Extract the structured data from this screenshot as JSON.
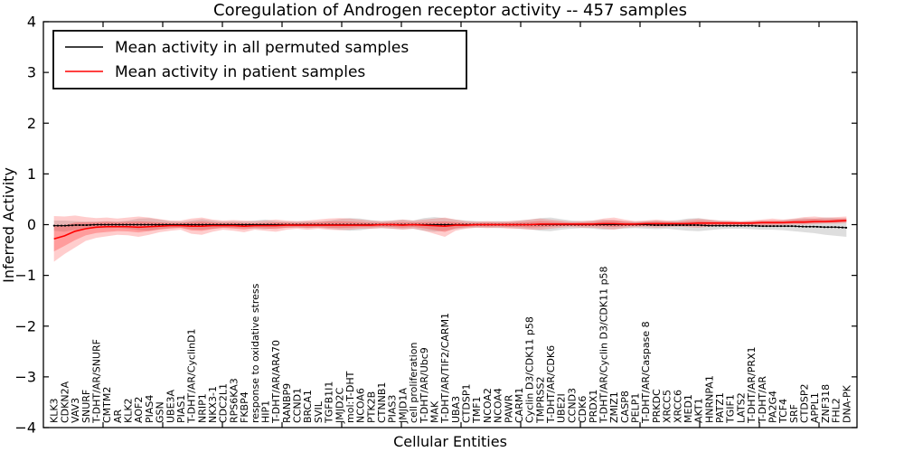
{
  "figure": {
    "title": "Coregulation of Androgen receptor activity -- 457 samples",
    "xlabel": "Cellular Entities",
    "ylabel": "Inferred Activity"
  },
  "legend": {
    "items": [
      {
        "label": "Mean activity in all permuted samples",
        "color": "#000000"
      },
      {
        "label": "Mean activity in patient samples",
        "color": "#ff0000"
      }
    ]
  },
  "colors": {
    "background": "#ffffff",
    "axis": "#000000",
    "permuted_line": "#000000",
    "patient_line": "#ff0000",
    "permuted_band": "rgba(0,0,0,0.13)",
    "patient_band": "rgba(255,45,45,0.24)",
    "patient_band_inner": "rgba(255,30,30,0.28)"
  },
  "chart_data": {
    "type": "line",
    "title": "Coregulation of Androgen receptor activity -- 457 samples",
    "xlabel": "Cellular Entities",
    "ylabel": "Inferred Activity",
    "ylim": [
      -4,
      4
    ],
    "yticks": [
      -4,
      -3,
      -2,
      -1,
      0,
      1,
      2,
      3,
      4
    ],
    "grid": false,
    "legend_position": "upper left",
    "categories": [
      "KLK3",
      "CDKN2A",
      "VAV3",
      "SNURF",
      "T-DHT/AR/SNURF",
      "CMTM2",
      "AR",
      "KLK2",
      "AOF2",
      "PIAS4",
      "GSN",
      "UBE3A",
      "PIAS1",
      "T-DHT/AR/CyclinD1",
      "NRIP1",
      "NKX3-1",
      "CDC2L1",
      "RPS6KA3",
      "FKBP4",
      "response to oxidative stress",
      "HIP1",
      "T-DHT/AR/ARA70",
      "RANBP9",
      "CCND1",
      "BRCA1",
      "SVIL",
      "TGFB1I1",
      "JMJD2C",
      "mol:T-DHT",
      "NCOA6",
      "PTK2B",
      "CTNNB1",
      "PIAS3",
      "JMJD1A",
      "cell proliferation",
      "T-DHT/AR/Ubc9",
      "MAK",
      "T-DHT/AR/TIF2/CARM1",
      "UBA3",
      "CTDSP1",
      "TMF1",
      "NCOA2",
      "NCOA4",
      "PAWR",
      "CARM1",
      "Cyclin D3/CDK11 p58",
      "TMPRSS2",
      "T-DHT/AR/CDK6",
      "UBE2I",
      "CCND3",
      "CDK6",
      "PRDX1",
      "T-DHT/AR/Cyclin D3/CDK11 p58",
      "ZMIZ1",
      "CASP8",
      "PELP1",
      "T-DHT/AR/Caspase 8",
      "PRKDC",
      "XRCC5",
      "XRCC6",
      "MED1",
      "AKT1",
      "HNRNPA1",
      "PATZ1",
      "TGIF1",
      "LATS2",
      "T-DHT/AR/PRX1",
      "T-DHT/AR",
      "PA2G4",
      "TCF4",
      "SRF",
      "CTDSP2",
      "APPL1",
      "ZNF318",
      "FHL2",
      "DNA-PK"
    ],
    "series": [
      {
        "name": "Mean activity in all permuted samples",
        "color": "#000000",
        "values": [
          -0.02,
          -0.02,
          -0.01,
          -0.01,
          0,
          0,
          0,
          0,
          0,
          0,
          0,
          0,
          0,
          0,
          0,
          0,
          0,
          0,
          0,
          0,
          0,
          0,
          0,
          0,
          0,
          0,
          0,
          0,
          0,
          0,
          0,
          0,
          0,
          0,
          0,
          0,
          0,
          0,
          0,
          0,
          0,
          0,
          0,
          0,
          0,
          0,
          0,
          0,
          0,
          0,
          0,
          0,
          0,
          0,
          0,
          0,
          0,
          -0.01,
          -0.01,
          -0.01,
          -0.01,
          -0.01,
          -0.02,
          -0.02,
          -0.02,
          -0.02,
          -0.02,
          -0.03,
          -0.03,
          -0.03,
          -0.03,
          -0.04,
          -0.04,
          -0.05,
          -0.05,
          -0.06
        ]
      },
      {
        "name": "Mean activity in patient samples",
        "color": "#ff0000",
        "values": [
          -0.28,
          -0.22,
          -0.13,
          -0.08,
          -0.05,
          -0.04,
          -0.04,
          -0.04,
          -0.05,
          -0.04,
          -0.03,
          -0.02,
          -0.02,
          -0.03,
          -0.03,
          -0.02,
          -0.02,
          -0.02,
          -0.03,
          -0.02,
          -0.02,
          -0.02,
          -0.01,
          -0.01,
          -0.01,
          -0.01,
          -0.01,
          -0.01,
          -0.01,
          -0.01,
          -0.01,
          0,
          0,
          -0.01,
          0,
          -0.01,
          -0.02,
          -0.03,
          -0.01,
          -0.01,
          0,
          0,
          0,
          0,
          0,
          0,
          0.01,
          0.01,
          0.01,
          0.01,
          0.01,
          0.01,
          0.02,
          0.02,
          0.01,
          0.01,
          0.02,
          0.02,
          0.02,
          0.02,
          0.02,
          0.03,
          0.03,
          0.03,
          0.03,
          0.03,
          0.03,
          0.04,
          0.04,
          0.04,
          0.05,
          0.05,
          0.06,
          0.06,
          0.07,
          0.08
        ]
      }
    ],
    "bands": [
      {
        "name": "permuted samples range",
        "color": "rgba(0,0,0,0.13)",
        "upper": [
          0.08,
          0.08,
          0.07,
          0.06,
          0.06,
          0.07,
          0.06,
          0.08,
          0.12,
          0.13,
          0.1,
          0.07,
          0.06,
          0.08,
          0.11,
          0.08,
          0.06,
          0.07,
          0.06,
          0.08,
          0.1,
          0.07,
          0.06,
          0.06,
          0.07,
          0.06,
          0.08,
          0.11,
          0.13,
          0.12,
          0.09,
          0.07,
          0.08,
          0.1,
          0.08,
          0.13,
          0.15,
          0.13,
          0.1,
          0.08,
          0.07,
          0.06,
          0.07,
          0.06,
          0.08,
          0.1,
          0.13,
          0.14,
          0.11,
          0.08,
          0.07,
          0.08,
          0.1,
          0.09,
          0.07,
          0.06,
          0.07,
          0.08,
          0.07,
          0.09,
          0.12,
          0.13,
          0.1,
          0.08,
          0.07,
          0.06,
          0.07,
          0.08,
          0.07,
          0.09,
          0.11,
          0.13,
          0.12,
          0.14,
          0.13,
          0.12
        ],
        "lower": [
          -0.12,
          -0.14,
          -0.1,
          -0.08,
          -0.07,
          -0.07,
          -0.06,
          -0.08,
          -0.11,
          -0.12,
          -0.09,
          -0.07,
          -0.06,
          -0.09,
          -0.1,
          -0.08,
          -0.06,
          -0.07,
          -0.07,
          -0.08,
          -0.09,
          -0.07,
          -0.06,
          -0.06,
          -0.07,
          -0.06,
          -0.08,
          -0.1,
          -0.12,
          -0.11,
          -0.08,
          -0.07,
          -0.08,
          -0.09,
          -0.08,
          -0.12,
          -0.14,
          -0.12,
          -0.09,
          -0.07,
          -0.06,
          -0.06,
          -0.07,
          -0.06,
          -0.08,
          -0.09,
          -0.12,
          -0.13,
          -0.1,
          -0.08,
          -0.07,
          -0.08,
          -0.1,
          -0.09,
          -0.08,
          -0.07,
          -0.08,
          -0.09,
          -0.08,
          -0.1,
          -0.12,
          -0.13,
          -0.11,
          -0.09,
          -0.08,
          -0.08,
          -0.09,
          -0.1,
          -0.1,
          -0.11,
          -0.13,
          -0.15,
          -0.17,
          -0.2,
          -0.22,
          -0.24
        ]
      },
      {
        "name": "patient samples range",
        "color": "rgba(255,45,45,0.24)",
        "upper": [
          0.17,
          0.16,
          0.18,
          0.15,
          0.13,
          0.14,
          0.12,
          0.14,
          0.16,
          0.14,
          0.11,
          0.08,
          0.08,
          0.12,
          0.14,
          0.1,
          0.08,
          0.09,
          0.08,
          0.07,
          0.08,
          0.1,
          0.08,
          0.07,
          0.08,
          0.1,
          0.12,
          0.13,
          0.12,
          0.1,
          0.08,
          0.07,
          0.08,
          0.1,
          0.08,
          0.1,
          0.12,
          0.14,
          0.1,
          0.07,
          0.06,
          0.07,
          0.06,
          0.07,
          0.08,
          0.1,
          0.12,
          0.1,
          0.08,
          0.06,
          0.07,
          0.08,
          0.12,
          0.14,
          0.1,
          0.07,
          0.08,
          0.1,
          0.08,
          0.07,
          0.1,
          0.12,
          0.1,
          0.08,
          0.08,
          0.07,
          0.08,
          0.1,
          0.12,
          0.1,
          0.12,
          0.15,
          0.16,
          0.14,
          0.15,
          0.16
        ],
        "lower": [
          -0.73,
          -0.58,
          -0.45,
          -0.32,
          -0.26,
          -0.23,
          -0.2,
          -0.21,
          -0.24,
          -0.2,
          -0.15,
          -0.12,
          -0.1,
          -0.18,
          -0.2,
          -0.14,
          -0.1,
          -0.12,
          -0.15,
          -0.1,
          -0.12,
          -0.14,
          -0.1,
          -0.08,
          -0.1,
          -0.08,
          -0.1,
          -0.11,
          -0.1,
          -0.08,
          -0.08,
          -0.07,
          -0.08,
          -0.1,
          -0.08,
          -0.12,
          -0.18,
          -0.24,
          -0.12,
          -0.08,
          -0.06,
          -0.07,
          -0.06,
          -0.08,
          -0.08,
          -0.1,
          -0.1,
          -0.08,
          -0.06,
          -0.05,
          -0.06,
          -0.06,
          -0.08,
          -0.1,
          -0.06,
          -0.05,
          -0.05,
          -0.06,
          -0.05,
          -0.04,
          -0.05,
          -0.06,
          -0.04,
          -0.03,
          -0.03,
          -0.02,
          -0.02,
          -0.03,
          -0.02,
          -0.01,
          0.0,
          0.0,
          0.01,
          0.02,
          0.02,
          0.03
        ]
      }
    ]
  }
}
